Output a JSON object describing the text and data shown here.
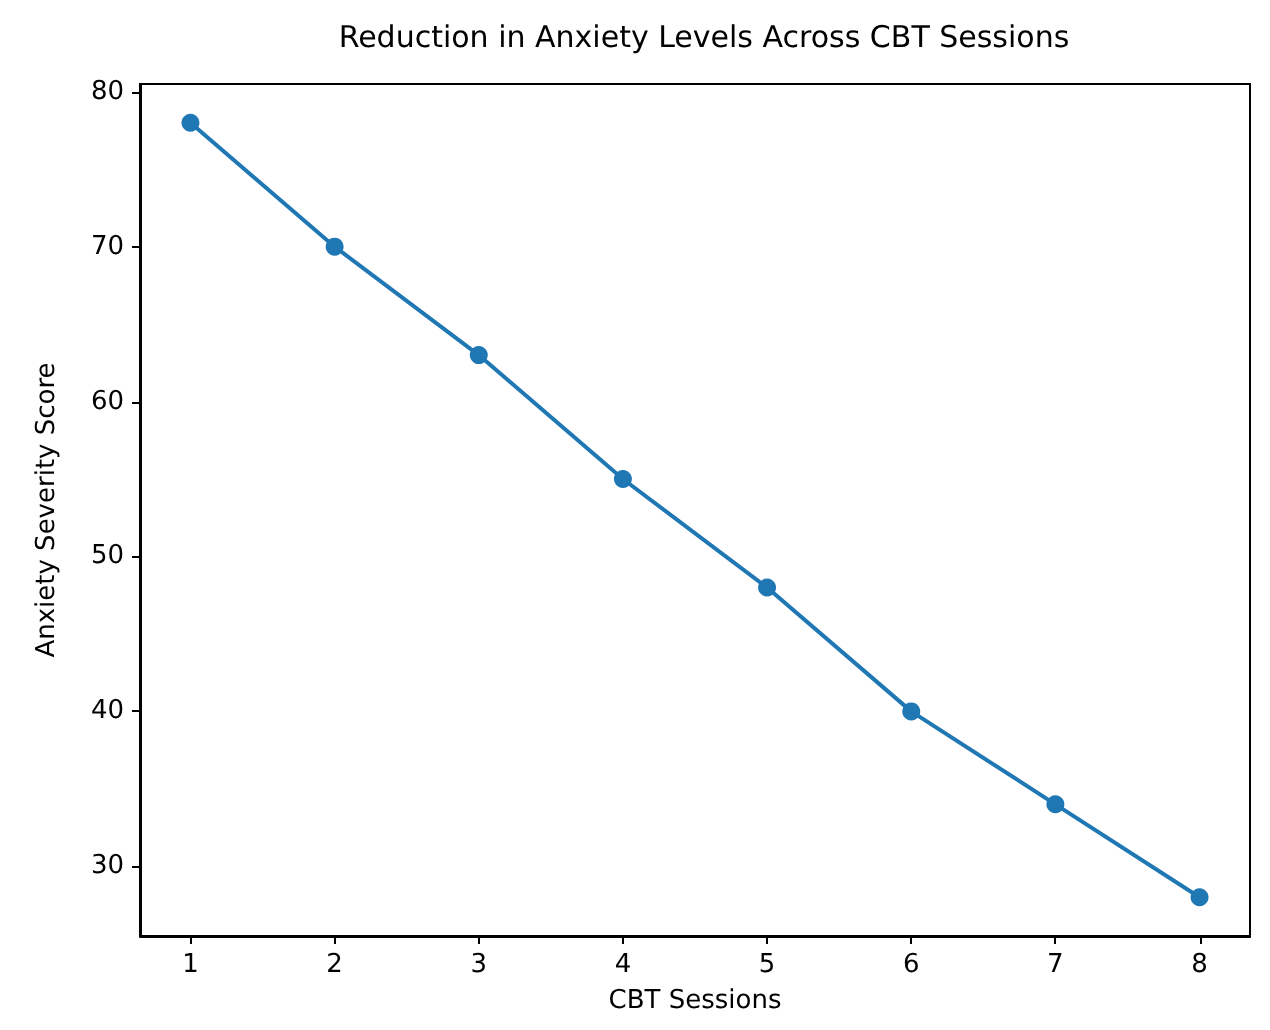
{
  "chart_data": {
    "type": "line",
    "title": "Reduction in Anxiety Levels Across CBT Sessions",
    "xlabel": "CBT Sessions",
    "ylabel": "Anxiety Severity Score",
    "x": [
      1,
      2,
      3,
      4,
      5,
      6,
      7,
      8
    ],
    "series": [
      {
        "color": "#1f77b4",
        "values": [
          78,
          70,
          63,
          55,
          48,
          40,
          34,
          28
        ]
      }
    ],
    "xlim": [
      0.65,
      8.35
    ],
    "xticks": [
      1,
      2,
      3,
      4,
      5,
      6,
      7,
      8
    ],
    "ylim": [
      25.5,
      80.5
    ],
    "yticks": [
      30,
      40,
      50,
      60,
      70,
      80
    ],
    "grid": false,
    "marker": "circle",
    "line_style": "solid"
  }
}
